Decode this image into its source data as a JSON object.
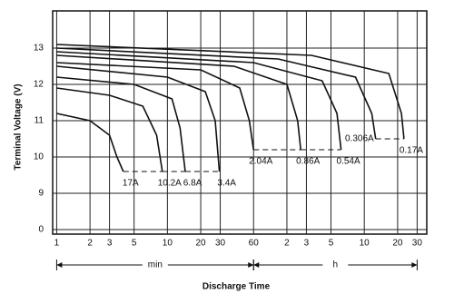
{
  "chart_data": {
    "type": "line",
    "x_label": "Discharge Time",
    "y_label": "Terminal Voltage (V)",
    "x_log": true,
    "grid": true,
    "y_break": true,
    "xlim": [
      0.92,
      2200
    ],
    "ylim": [
      0,
      14
    ],
    "xticks": [
      1,
      2,
      3,
      5,
      10,
      20,
      30,
      60,
      {
        "value": 120,
        "label": "2"
      },
      {
        "value": 180,
        "label": "3"
      },
      {
        "value": 300,
        "label": "5"
      },
      {
        "value": 600,
        "label": "10"
      },
      {
        "value": 1200,
        "label": "20"
      },
      {
        "value": 1800,
        "label": "30"
      }
    ],
    "yticks": [
      0,
      9,
      10,
      11,
      12,
      13
    ],
    "x_ranges": [
      {
        "label": "min",
        "from": 1,
        "to": 60
      },
      {
        "label": "h",
        "from": 60,
        "to": 1800
      }
    ],
    "series": [
      {
        "name": "17A",
        "color": "#111",
        "x": [
          1,
          2,
          3,
          3.5,
          4
        ],
        "values": [
          11.2,
          11.0,
          10.6,
          10.0,
          9.6
        ]
      },
      {
        "name": "10.2A",
        "color": "#111",
        "x": [
          1,
          3,
          6,
          8,
          9
        ],
        "values": [
          11.9,
          11.7,
          11.4,
          10.6,
          9.6
        ]
      },
      {
        "name": "6.8A",
        "color": "#111",
        "x": [
          1,
          5,
          11,
          13,
          14.5
        ],
        "values": [
          12.2,
          12.0,
          11.6,
          10.8,
          9.6
        ]
      },
      {
        "name": "3.4A",
        "color": "#111",
        "x": [
          1,
          10,
          22,
          27,
          29.5
        ],
        "values": [
          12.5,
          12.2,
          11.8,
          11.0,
          9.6
        ]
      },
      {
        "name": "2.04A",
        "color": "#111",
        "x": [
          1,
          20,
          45,
          55,
          60
        ],
        "values": [
          12.6,
          12.4,
          11.9,
          11.0,
          10.2
        ]
      },
      {
        "name": "0.86A",
        "color": "#111",
        "x": [
          1,
          40,
          120,
          150,
          160
        ],
        "values": [
          12.8,
          12.5,
          12.0,
          11.0,
          10.2
        ]
      },
      {
        "name": "0.54A",
        "color": "#111",
        "x": [
          1,
          60,
          250,
          340,
          370
        ],
        "values": [
          12.9,
          12.6,
          12.1,
          11.2,
          10.2
        ]
      },
      {
        "name": "0.306A",
        "color": "#111",
        "x": [
          1,
          100,
          500,
          700,
          760
        ],
        "values": [
          13.0,
          12.7,
          12.2,
          11.2,
          10.5
        ]
      },
      {
        "name": "0.17A",
        "color": "#111",
        "x": [
          1,
          200,
          1000,
          1300,
          1370
        ],
        "values": [
          13.1,
          12.8,
          12.3,
          11.2,
          10.5
        ]
      }
    ]
  }
}
